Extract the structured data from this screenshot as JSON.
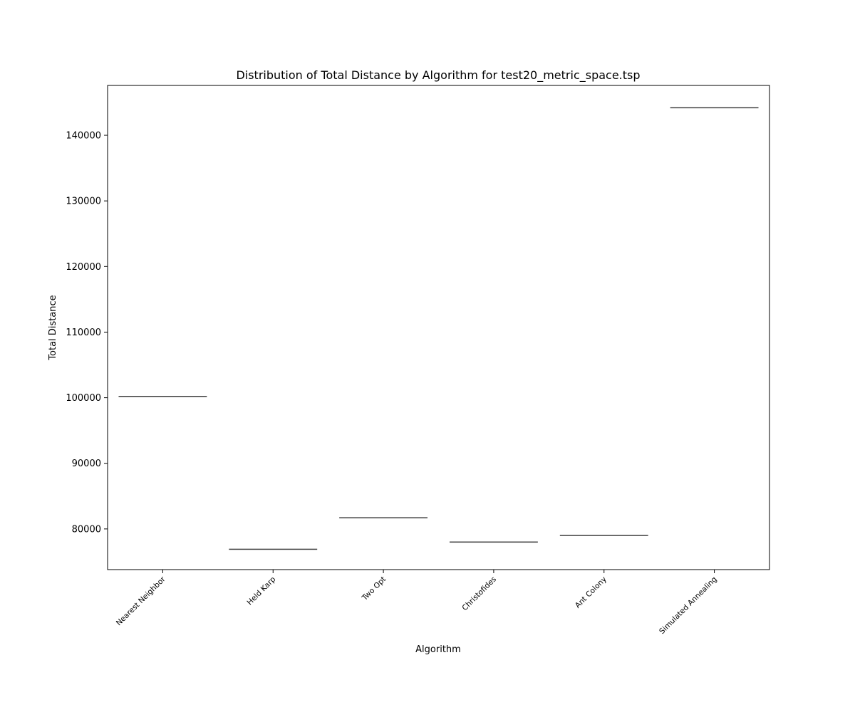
{
  "chart_data": {
    "type": "box",
    "title": "Distribution of Total Distance by Algorithm for test20_metric_space.tsp",
    "xlabel": "Algorithm",
    "ylabel": "Total Distance",
    "categories": [
      "Nearest Neighbor",
      "Held Karp",
      "Two Opt",
      "Christofides",
      "Ant Colony",
      "Simulated Annealing"
    ],
    "values": [
      100200,
      76900,
      81700,
      78000,
      79000,
      144200
    ],
    "ylim": [
      73800,
      147600
    ],
    "yticks": [
      80000,
      90000,
      100000,
      110000,
      120000,
      130000,
      140000
    ],
    "ytick_labels": [
      "80000",
      "90000",
      "100000",
      "110000",
      "120000",
      "130000",
      "140000"
    ],
    "grid": false,
    "legend": "none",
    "colors": {
      "box_line": "#3f3f3f",
      "axis": "#000000",
      "background": "#ffffff"
    }
  }
}
